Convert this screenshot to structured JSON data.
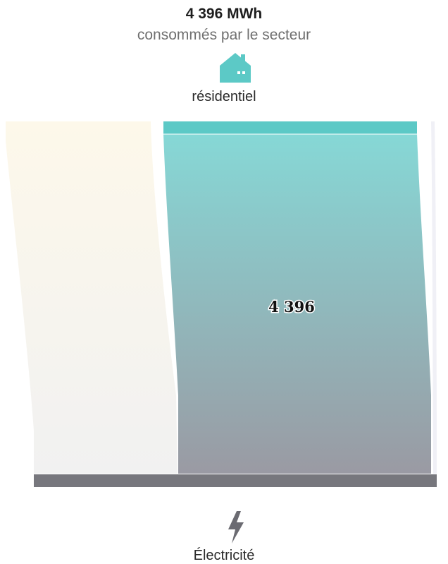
{
  "header": {
    "total": "4 396 MWh",
    "subtitle": "consommés par le secteur"
  },
  "sector": {
    "label": "résidentiel",
    "icon": "house-icon",
    "color": "#5cc9c6"
  },
  "energy": {
    "label": "Électricité",
    "icon": "lightning-bolt-icon",
    "color": "#6b6b72"
  },
  "chart_data": {
    "type": "sankey",
    "title": "4 396 MWh",
    "subtitle": "consommés par le secteur",
    "source": "Électricité",
    "target": "résidentiel",
    "flows": [
      {
        "from": "Électricité",
        "to": "résidentiel",
        "value": 4396,
        "label": "4 396"
      }
    ],
    "colors": {
      "flow_top": "#86d8d6",
      "flow_bottom": "#9a9aa3",
      "sector_bar": "#5cc9c6",
      "energy_bar": "#77777d",
      "other_flows_top": "#fdf8ea",
      "other_flows_bottom": "#f1f1f1"
    }
  }
}
